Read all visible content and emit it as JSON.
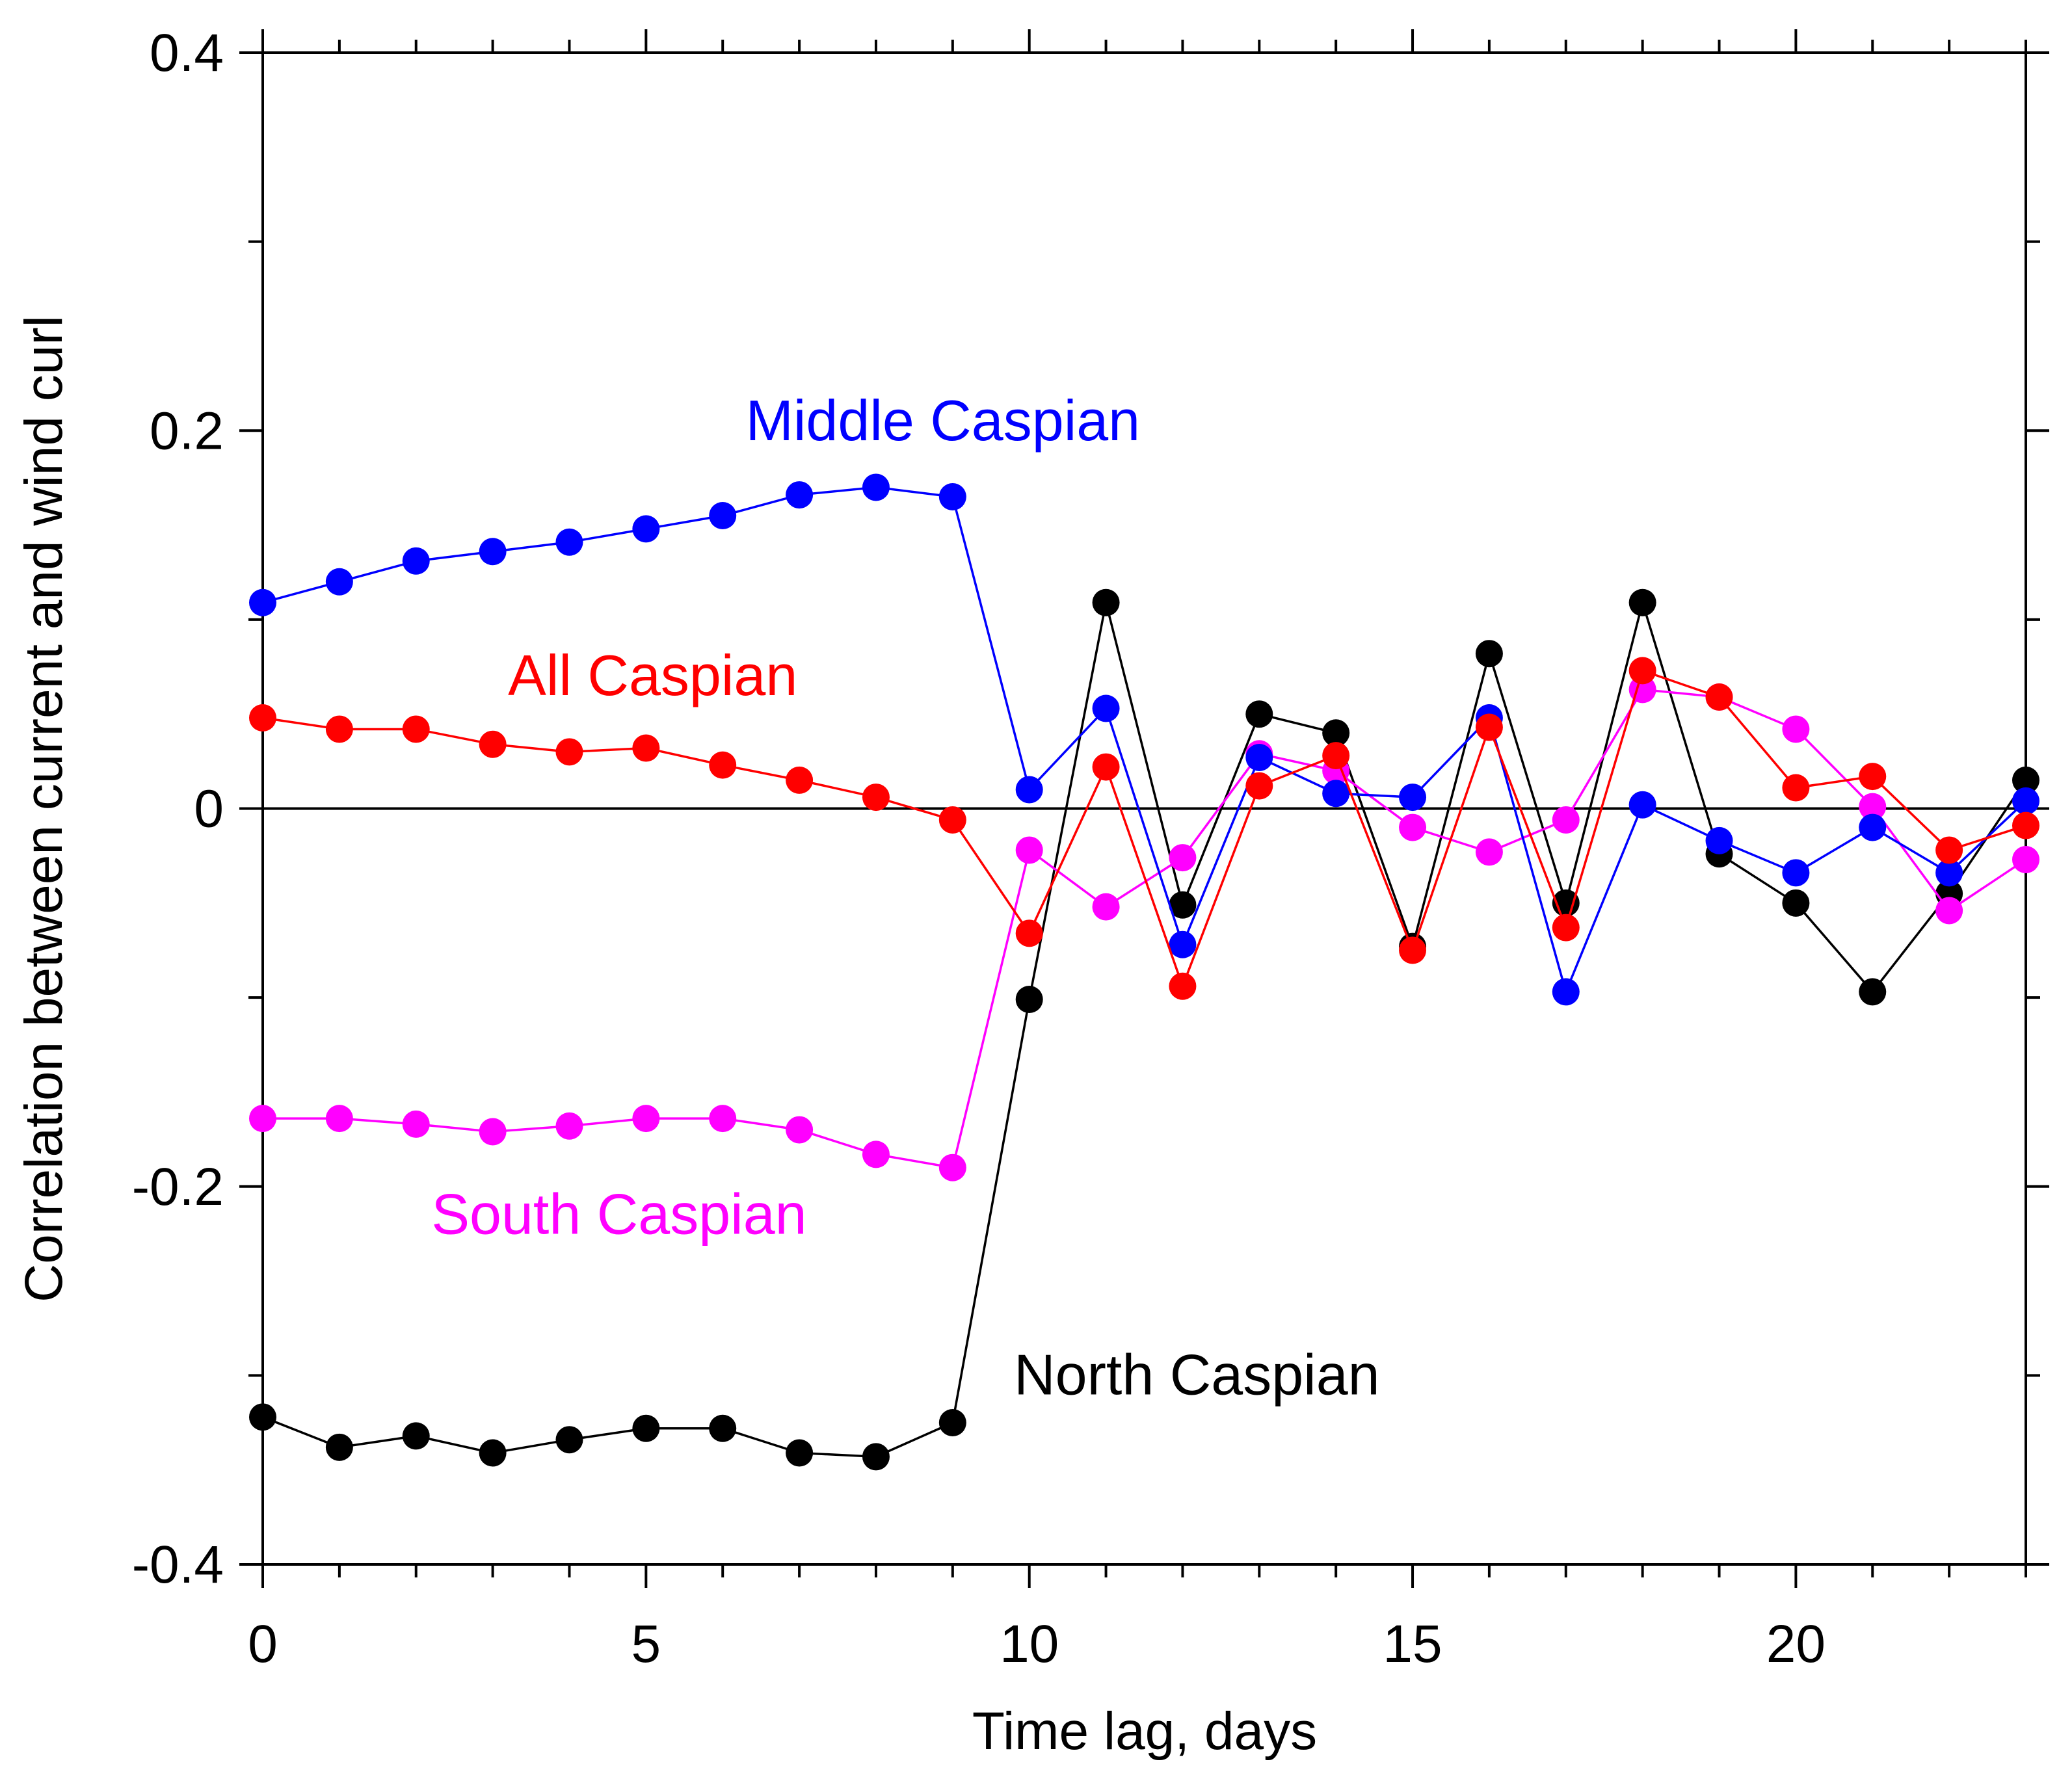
{
  "chart_data": {
    "type": "line",
    "title": "",
    "xlabel": "Time lag, days",
    "ylabel": "Correlation between current and wind curl",
    "xlim": [
      0,
      23
    ],
    "ylim": [
      -0.4,
      0.4
    ],
    "xticks": [
      0,
      5,
      10,
      15,
      20
    ],
    "xtick_labels": [
      "0",
      "5",
      "10",
      "15",
      "20"
    ],
    "yticks": [
      -0.4,
      -0.2,
      0,
      0.2,
      0.4
    ],
    "ytick_labels": [
      "-0.4",
      "-0.2",
      "0",
      "0.2",
      "0.4"
    ],
    "grid": false,
    "x": [
      0,
      1,
      2,
      3,
      4,
      5,
      6,
      7,
      8,
      9,
      10,
      11,
      12,
      13,
      14,
      15,
      16,
      17,
      18,
      19,
      20,
      21,
      22,
      23
    ],
    "series": [
      {
        "name": "North Caspian",
        "color": "#000000",
        "label_pos": [
          9.8,
          -0.31
        ],
        "values": [
          -0.322,
          -0.338,
          -0.332,
          -0.341,
          -0.334,
          -0.328,
          -0.328,
          -0.341,
          -0.343,
          -0.325,
          -0.101,
          0.109,
          -0.051,
          0.05,
          0.04,
          -0.073,
          0.082,
          -0.05,
          0.109,
          -0.024,
          -0.05,
          -0.097,
          -0.045,
          0.015
        ]
      },
      {
        "name": "South Caspian",
        "color": "#ff00ff",
        "label_pos": [
          2.2,
          -0.225
        ],
        "values": [
          -0.164,
          -0.164,
          -0.167,
          -0.171,
          -0.168,
          -0.164,
          -0.164,
          -0.17,
          -0.183,
          -0.19,
          -0.022,
          -0.052,
          -0.026,
          0.029,
          0.02,
          -0.01,
          -0.023,
          -0.006,
          0.063,
          0.059,
          0.042,
          0.001,
          -0.054,
          -0.027
        ]
      },
      {
        "name": "Middle Caspian",
        "color": "#0000ff",
        "label_pos": [
          6.3,
          0.195
        ],
        "values": [
          0.109,
          0.12,
          0.131,
          0.136,
          0.141,
          0.148,
          0.155,
          0.166,
          0.17,
          0.165,
          0.01,
          0.053,
          -0.072,
          0.027,
          0.008,
          0.006,
          0.048,
          -0.097,
          0.002,
          -0.017,
          -0.034,
          -0.01,
          -0.034,
          0.004
        ]
      },
      {
        "name": "All Caspian",
        "color": "#ff0000",
        "label_pos": [
          3.2,
          0.06
        ],
        "values": [
          0.048,
          0.042,
          0.042,
          0.034,
          0.03,
          0.032,
          0.023,
          0.015,
          0.006,
          -0.006,
          -0.066,
          0.022,
          -0.094,
          0.012,
          0.028,
          -0.075,
          0.043,
          -0.063,
          0.073,
          0.059,
          0.011,
          0.017,
          -0.022,
          -0.009
        ]
      }
    ]
  }
}
